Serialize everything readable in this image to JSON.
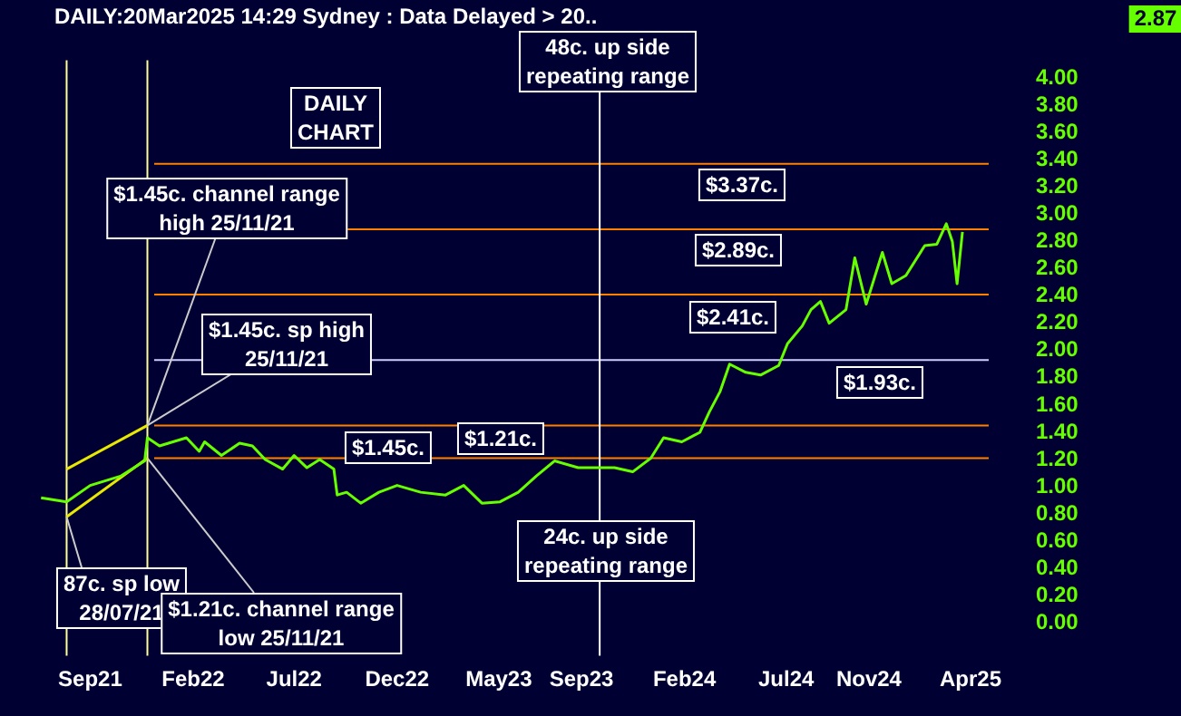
{
  "chart_data": {
    "type": "line",
    "title": "DAILY:20Mar2025 14:29 Sydney : Data Delayed > 20..",
    "x": [
      "2021-06-20",
      "2021-07-28",
      "2021-09-01",
      "2021-10-17",
      "2021-11-21",
      "2021-11-25",
      "2021-12-13",
      "2022-01-22",
      "2022-02-10",
      "2022-02-18",
      "2022-03-15",
      "2022-04-11",
      "2022-04-30",
      "2022-05-19",
      "2022-06-14",
      "2022-07-01",
      "2022-07-20",
      "2022-08-08",
      "2022-08-29",
      "2022-09-03",
      "2022-09-17",
      "2022-10-08",
      "2022-11-04",
      "2022-12-01",
      "2023-01-05",
      "2023-02-11",
      "2023-03-10",
      "2023-04-06",
      "2023-05-03",
      "2023-05-30",
      "2023-06-26",
      "2023-07-23",
      "2023-08-27",
      "2023-10-20",
      "2023-11-16",
      "2023-12-13",
      "2024-01-01",
      "2024-01-28",
      "2024-02-24",
      "2024-03-09",
      "2024-03-25",
      "2024-04-08",
      "2024-05-02",
      "2024-05-24",
      "2024-06-20",
      "2024-07-03",
      "2024-07-25",
      "2024-08-07",
      "2024-08-21",
      "2024-09-03",
      "2024-09-28",
      "2024-10-11",
      "2024-10-28",
      "2024-11-21",
      "2024-12-05",
      "2024-12-26",
      "2025-01-23",
      "2025-02-10",
      "2025-02-24",
      "2025-03-05",
      "2025-03-12",
      "2025-03-20"
    ],
    "series": [
      {
        "color": "#66ff00",
        "values": [
          0.92,
          0.89,
          1.01,
          1.08,
          1.19,
          1.36,
          1.3,
          1.36,
          1.26,
          1.33,
          1.23,
          1.32,
          1.3,
          1.2,
          1.13,
          1.23,
          1.14,
          1.2,
          1.13,
          0.94,
          0.96,
          0.88,
          0.96,
          1.01,
          0.96,
          0.94,
          1.01,
          0.88,
          0.89,
          0.96,
          1.08,
          1.19,
          1.14,
          1.14,
          1.11,
          1.21,
          1.36,
          1.33,
          1.4,
          1.55,
          1.7,
          1.9,
          1.84,
          1.82,
          1.89,
          2.05,
          2.18,
          2.3,
          2.36,
          2.2,
          2.3,
          2.68,
          2.34,
          2.72,
          2.49,
          2.55,
          2.77,
          2.78,
          2.93,
          2.8,
          2.49,
          2.87
        ]
      },
      {
        "type": "line",
        "color": "#e8e800",
        "x": [
          "2021-07-28",
          "2021-11-25"
        ],
        "values": [
          1.13,
          1.45
        ]
      },
      {
        "type": "line",
        "color": "#e8e800",
        "x": [
          "2021-07-28",
          "2021-11-25"
        ],
        "values": [
          0.78,
          1.21
        ]
      }
    ],
    "annotations": [
      "DAILY\nCHART",
      "48c. up side\nrepeating range",
      {
        "text": "$1.45c. channel range\nhigh 25/11/21",
        "x": "2021-11-25",
        "y": 1.45
      },
      {
        "text": "$1.45c. sp high\n25/11/21",
        "x": "2021-11-25",
        "y": 1.45
      },
      {
        "text": "87c. sp low\n28/07/21",
        "x": "2021-07-28",
        "y": 0.78
      },
      {
        "text": "$1.21c. channel range\nlow 25/11/21",
        "x": "2021-11-25",
        "y": 1.21
      },
      "24c. up side\nrepeating range",
      "2.87"
    ],
    "ref_lines": [
      {
        "axis": "y",
        "value": 3.37,
        "label": "$3.37c.",
        "color": "#ff8000"
      },
      {
        "axis": "y",
        "value": 2.89,
        "label": "$2.89c.",
        "color": "#ff8000"
      },
      {
        "axis": "y",
        "value": 2.41,
        "label": "$2.41c.",
        "color": "#ff8000"
      },
      {
        "axis": "y",
        "value": 1.93,
        "label": "$1.93c.",
        "color": "#ccccff"
      },
      {
        "axis": "y",
        "value": 1.45,
        "label": "$1.45c.",
        "color": "#ff8000"
      },
      {
        "axis": "y",
        "value": 1.21,
        "label": "$1.21c.",
        "color": "#ff8000"
      },
      {
        "axis": "x",
        "value": "2021-07-28",
        "color": "#ffff99"
      },
      {
        "axis": "x",
        "value": "2021-11-25",
        "color": "#ffff99"
      },
      {
        "axis": "x",
        "value": "2023-09-28",
        "color": "#ffffff"
      }
    ],
    "xlim": [
      "2021-04-20",
      "2025-04-28"
    ],
    "xticks": [
      {
        "value": "2021-09-01",
        "label": "Sep21"
      },
      {
        "value": "2022-02-01",
        "label": "Feb22"
      },
      {
        "value": "2022-07-01",
        "label": "Jul22"
      },
      {
        "value": "2022-12-01",
        "label": "Dec22"
      },
      {
        "value": "2023-05-01",
        "label": "May23"
      },
      {
        "value": "2023-09-01",
        "label": "Sep23"
      },
      {
        "value": "2024-02-01",
        "label": "Feb24"
      },
      {
        "value": "2024-07-01",
        "label": "Jul24"
      },
      {
        "value": "2024-11-01",
        "label": "Nov24"
      },
      {
        "value": "2025-04-01",
        "label": "Apr25"
      }
    ],
    "ylim": [
      -0.24,
      4.13
    ],
    "yticks": [
      {
        "value": 0,
        "label": "0.00"
      },
      {
        "value": 0.2,
        "label": "0.20"
      },
      {
        "value": 0.4,
        "label": "0.40"
      },
      {
        "value": 0.6,
        "label": "0.60"
      },
      {
        "value": 0.8,
        "label": "0.80"
      },
      {
        "value": 1,
        "label": "1.00"
      },
      {
        "value": 1.2,
        "label": "1.20"
      },
      {
        "value": 1.4,
        "label": "1.40"
      },
      {
        "value": 1.6,
        "label": "1.60"
      },
      {
        "value": 1.8,
        "label": "1.80"
      },
      {
        "value": 2,
        "label": "2.00"
      },
      {
        "value": 2.2,
        "label": "2.20"
      },
      {
        "value": 2.4,
        "label": "2.40"
      },
      {
        "value": 2.6,
        "label": "2.60"
      },
      {
        "value": 2.8,
        "label": "2.80"
      },
      {
        "value": 3,
        "label": "3.00"
      },
      {
        "value": 3.2,
        "label": "3.20"
      },
      {
        "value": 3.4,
        "label": "3.40"
      },
      {
        "value": 3.6,
        "label": "3.60"
      },
      {
        "value": 3.8,
        "label": "3.80"
      },
      {
        "value": 4,
        "label": "4.00"
      }
    ],
    "grid": false,
    "legend": false,
    "marker": "none",
    "line_style": "solid"
  }
}
